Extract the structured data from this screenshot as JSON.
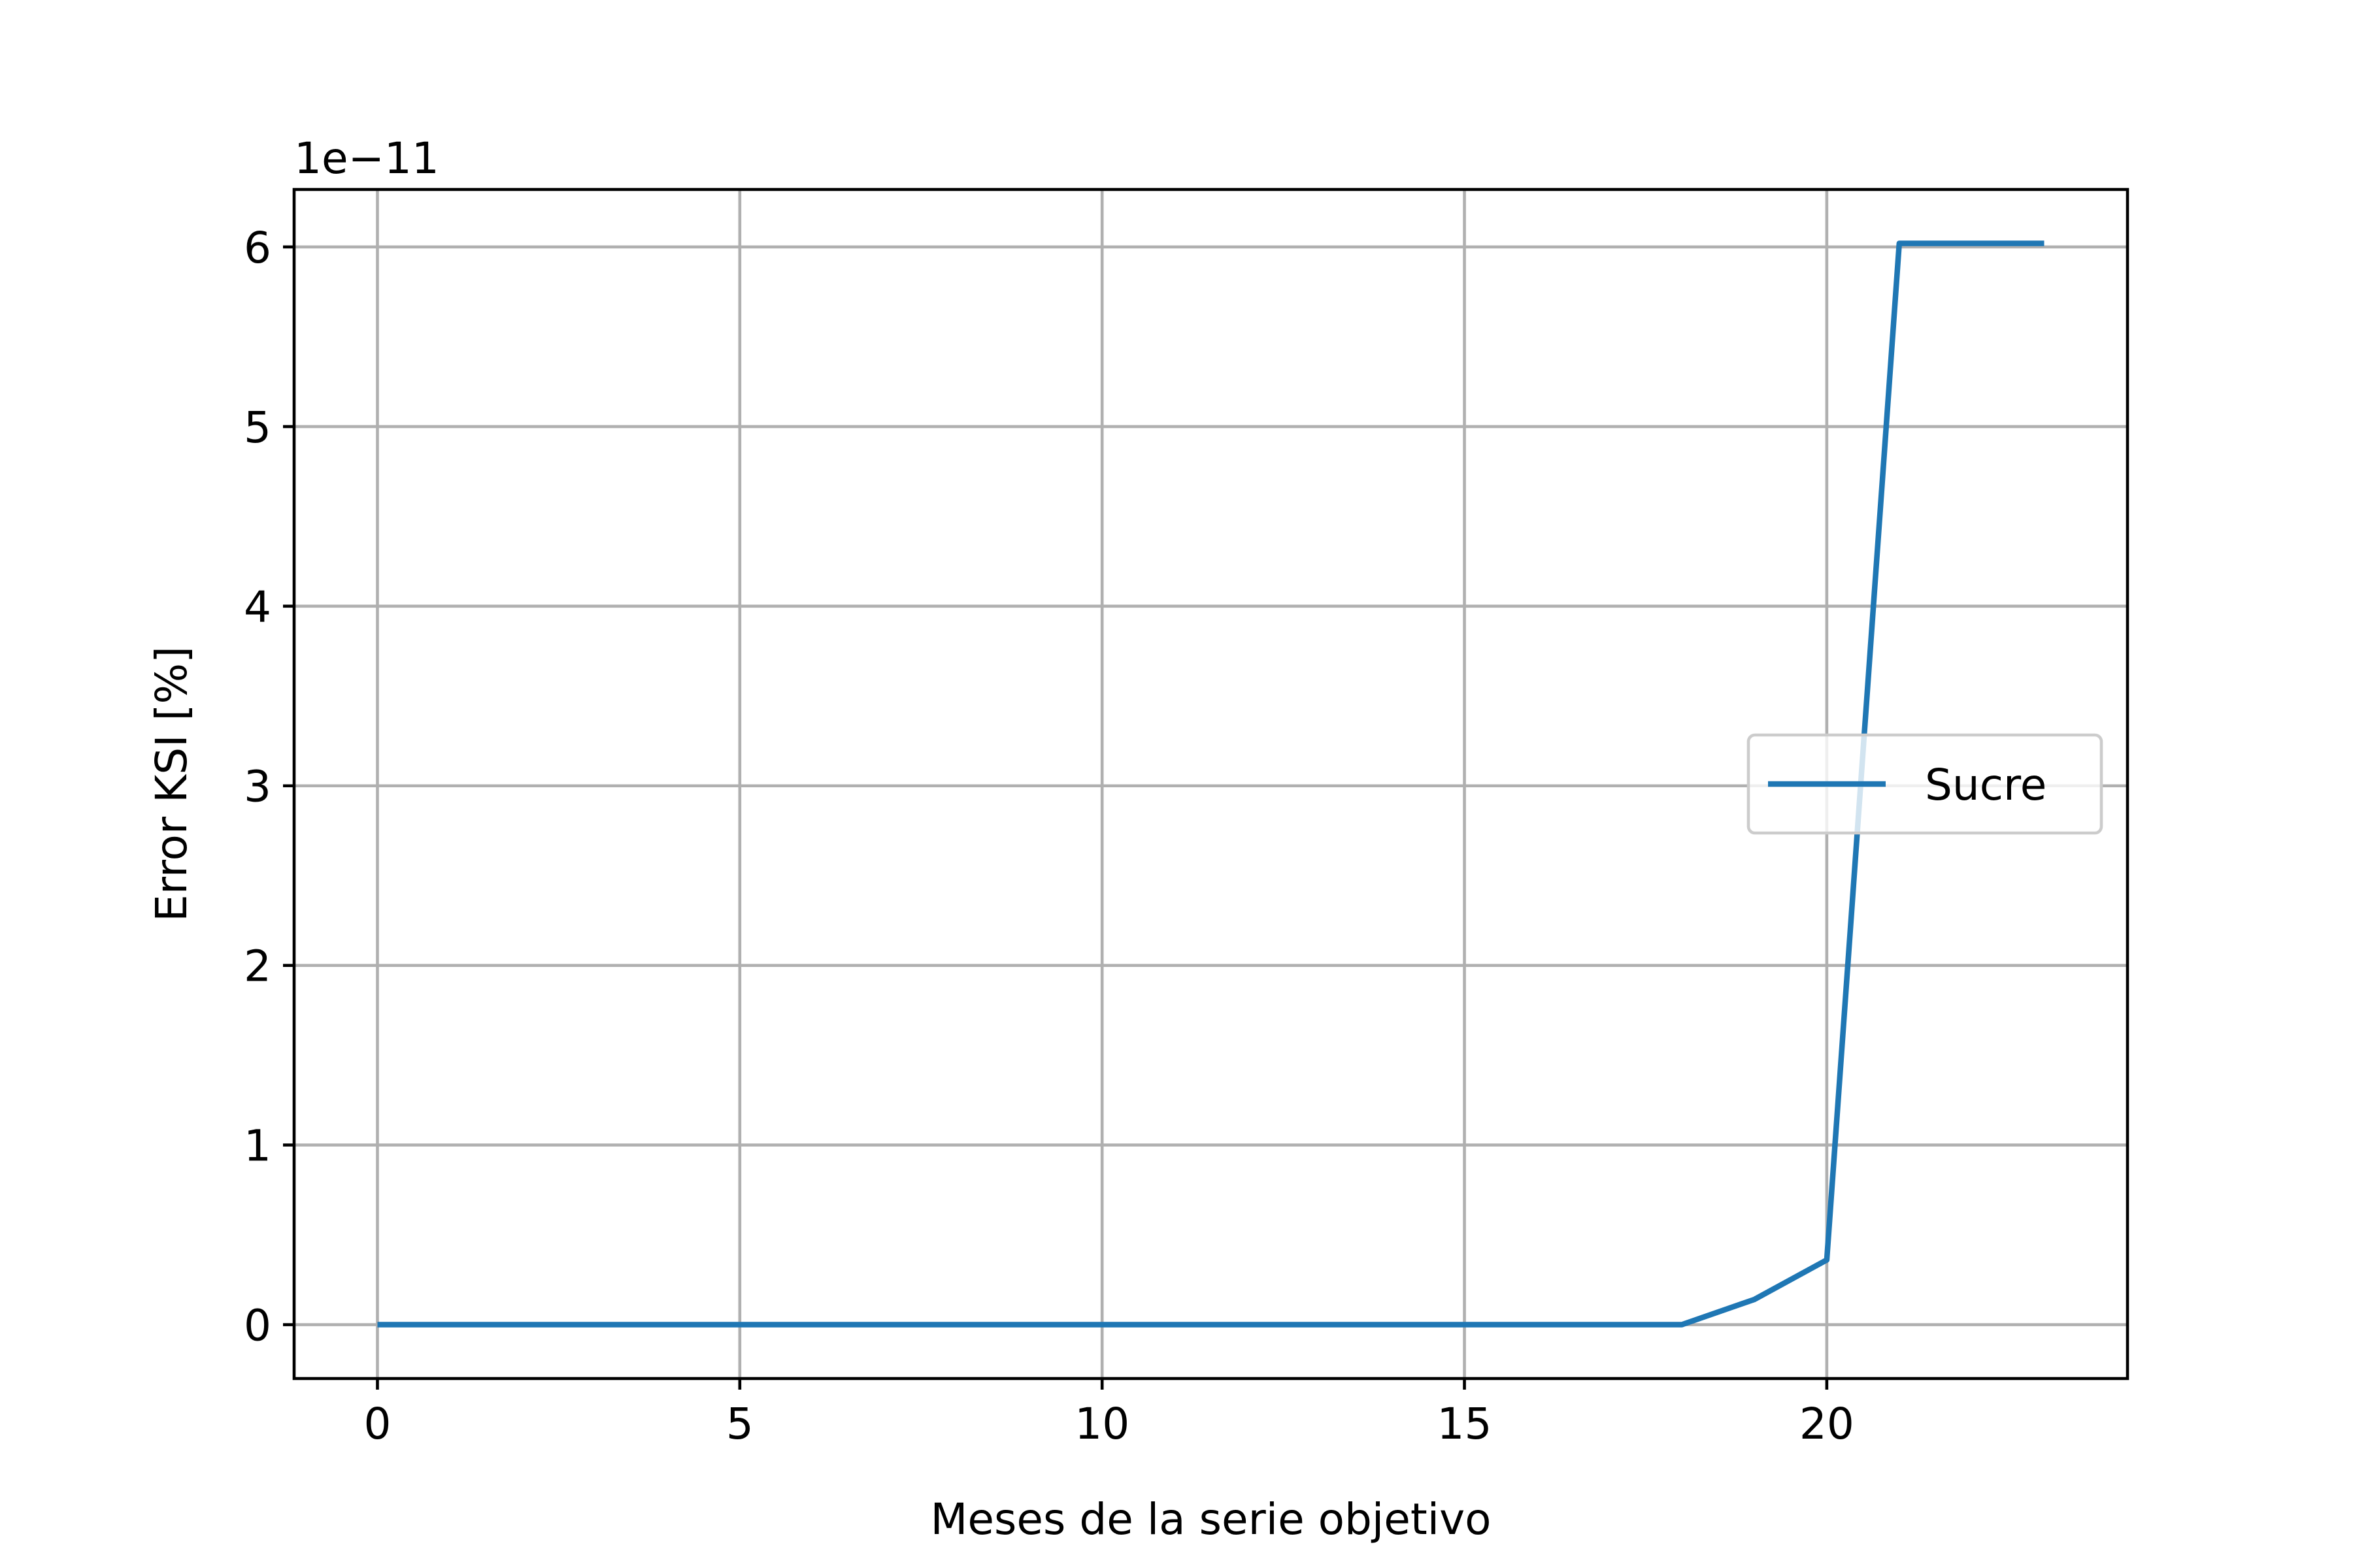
{
  "chart_data": {
    "type": "line",
    "title": "",
    "xlabel": "Meses de la serie objetivo",
    "ylabel": "Error KSI [%]",
    "y_offset_label": "1e−11",
    "xlim": [
      -1.15,
      24.15
    ],
    "ylim": [
      -0.3,
      6.32
    ],
    "xticks": [
      0,
      5,
      10,
      15,
      20
    ],
    "xtick_labels": [
      "0",
      "5",
      "10",
      "15",
      "20"
    ],
    "yticks": [
      0,
      1,
      2,
      3,
      4,
      5,
      6
    ],
    "ytick_labels": [
      "0",
      "1",
      "2",
      "3",
      "4",
      "5",
      "6"
    ],
    "grid": true,
    "legend_position": "center right",
    "series": [
      {
        "name": "Sucre",
        "color": "#1f77b4",
        "x": [
          0,
          1,
          2,
          3,
          4,
          5,
          6,
          7,
          8,
          9,
          10,
          11,
          12,
          13,
          14,
          15,
          16,
          17,
          18,
          19,
          20,
          21,
          22,
          23
        ],
        "y": [
          0,
          0,
          0,
          0,
          0,
          0,
          0,
          0,
          0,
          0,
          0,
          0,
          0,
          0,
          0,
          0,
          0,
          0,
          0,
          0.14,
          0.36,
          6.02,
          6.02,
          6.02
        ]
      }
    ]
  }
}
